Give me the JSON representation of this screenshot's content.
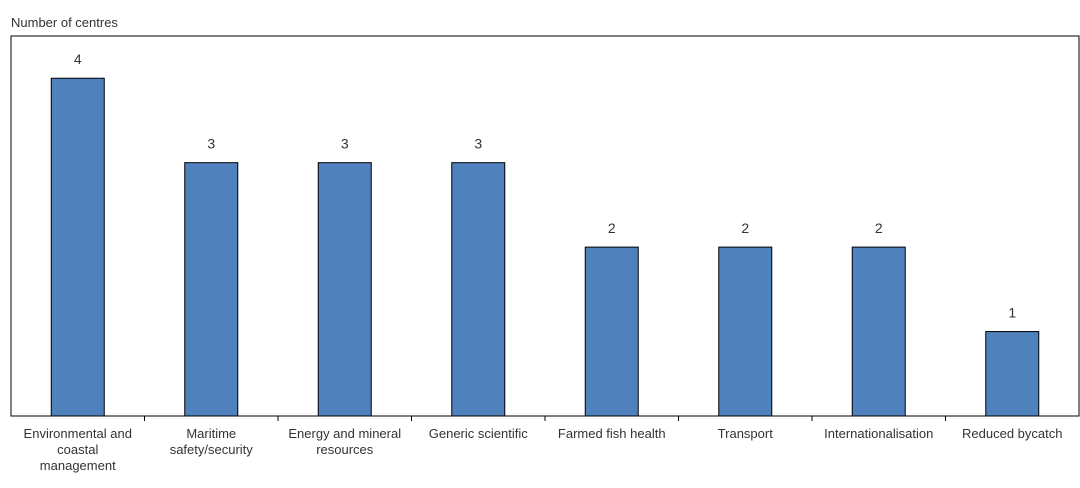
{
  "chart_data": {
    "type": "bar",
    "title": "",
    "xlabel": "",
    "ylabel": "Number of centres",
    "ylim": [
      0,
      4.5
    ],
    "grid": false,
    "legend": "none",
    "categories": [
      "Environmental and coastal management",
      "Maritime safety/security",
      "Energy and mineral resources",
      "Generic scientific",
      "Farmed fish health",
      "Transport",
      "Internationalisation",
      "Reduced bycatch"
    ],
    "category_lines": [
      [
        "Environmental and",
        "coastal",
        "management"
      ],
      [
        "Maritime",
        "safety/security"
      ],
      [
        "Energy and mineral",
        "resources"
      ],
      [
        "Generic scientific"
      ],
      [
        "Farmed fish health"
      ],
      [
        "Transport"
      ],
      [
        "Internationalisation"
      ],
      [
        "Reduced bycatch"
      ]
    ],
    "values": [
      4,
      3,
      3,
      3,
      2,
      2,
      2,
      1
    ],
    "data_labels": [
      "4",
      "3",
      "3",
      "3",
      "2",
      "2",
      "2",
      "1"
    ],
    "bar_color": "#4f81bd",
    "bar_outline": "#000000"
  }
}
